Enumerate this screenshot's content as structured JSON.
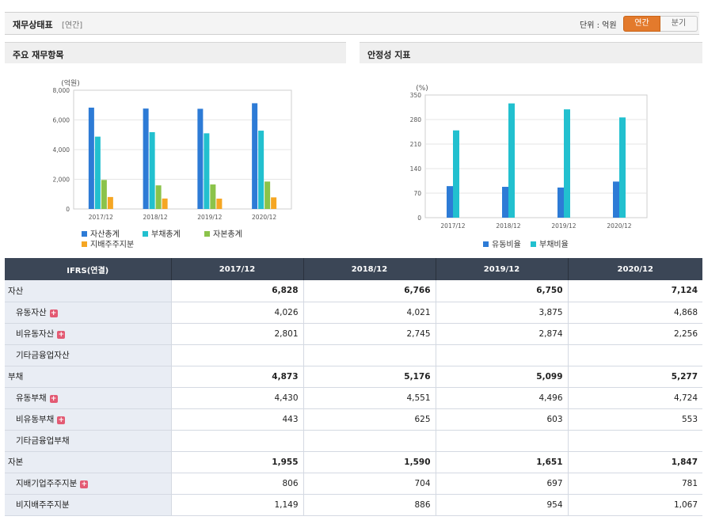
{
  "header": {
    "title": "재무상태표",
    "subtitle": "[연간]",
    "unit": "단위 : 억원",
    "toggle": [
      "연간",
      "분기"
    ]
  },
  "panels": {
    "left_title": "주요 재무항목",
    "right_title": "안정성 지표"
  },
  "chart_data": [
    {
      "type": "bar",
      "title": "주요 재무항목",
      "ylabel": "(억원)",
      "categories": [
        "2017/12",
        "2018/12",
        "2019/12",
        "2020/12"
      ],
      "ylim": [
        0,
        8000
      ],
      "yticks": [
        "0",
        "2,000",
        "4,000",
        "6,000",
        "8,000"
      ],
      "series": [
        {
          "name": "자산총계",
          "color": "#2d7bd6",
          "values": [
            6828,
            6766,
            6750,
            7124
          ]
        },
        {
          "name": "부채총계",
          "color": "#22c0cf",
          "values": [
            4873,
            5176,
            5099,
            5277
          ]
        },
        {
          "name": "자본총계",
          "color": "#8bc34a",
          "values": [
            1955,
            1590,
            1651,
            1847
          ]
        },
        {
          "name": "지배주주지분",
          "color": "#f5a623",
          "values": [
            806,
            704,
            697,
            781
          ]
        }
      ],
      "grid": true,
      "legend": "bottom"
    },
    {
      "type": "bar",
      "title": "안정성 지표",
      "ylabel": "(%)",
      "categories": [
        "2017/12",
        "2018/12",
        "2019/12",
        "2020/12"
      ],
      "ylim": [
        0,
        350
      ],
      "yticks": [
        "0",
        "70",
        "140",
        "210",
        "280",
        "350"
      ],
      "series": [
        {
          "name": "유동비율",
          "color": "#2d7bd6",
          "values": [
            90,
            88,
            86,
            103
          ]
        },
        {
          "name": "부채비율",
          "color": "#22c0cf",
          "values": [
            249,
            326,
            309,
            286
          ]
        }
      ],
      "grid": true,
      "legend": "bottom"
    }
  ],
  "table": {
    "headers": [
      "IFRS(연결)",
      "2017/12",
      "2018/12",
      "2019/12",
      "2020/12"
    ],
    "rows": [
      {
        "label": "자산",
        "main": true,
        "expand": false,
        "values": [
          "6,828",
          "6,766",
          "6,750",
          "7,124"
        ]
      },
      {
        "label": "유동자산",
        "main": false,
        "expand": true,
        "values": [
          "4,026",
          "4,021",
          "3,875",
          "4,868"
        ]
      },
      {
        "label": "비유동자산",
        "main": false,
        "expand": true,
        "values": [
          "2,801",
          "2,745",
          "2,874",
          "2,256"
        ]
      },
      {
        "label": "기타금융업자산",
        "main": false,
        "expand": false,
        "values": [
          "",
          "",
          "",
          ""
        ]
      },
      {
        "label": "부채",
        "main": true,
        "expand": false,
        "values": [
          "4,873",
          "5,176",
          "5,099",
          "5,277"
        ]
      },
      {
        "label": "유동부채",
        "main": false,
        "expand": true,
        "values": [
          "4,430",
          "4,551",
          "4,496",
          "4,724"
        ]
      },
      {
        "label": "비유동부채",
        "main": false,
        "expand": true,
        "values": [
          "443",
          "625",
          "603",
          "553"
        ]
      },
      {
        "label": "기타금융업부채",
        "main": false,
        "expand": false,
        "values": [
          "",
          "",
          "",
          ""
        ]
      },
      {
        "label": "자본",
        "main": true,
        "expand": false,
        "values": [
          "1,955",
          "1,590",
          "1,651",
          "1,847"
        ]
      },
      {
        "label": "지배기업주주지분",
        "main": false,
        "expand": true,
        "values": [
          "806",
          "704",
          "697",
          "781"
        ]
      },
      {
        "label": "비지배주주지분",
        "main": false,
        "expand": false,
        "values": [
          "1,149",
          "886",
          "954",
          "1,067"
        ]
      }
    ]
  }
}
